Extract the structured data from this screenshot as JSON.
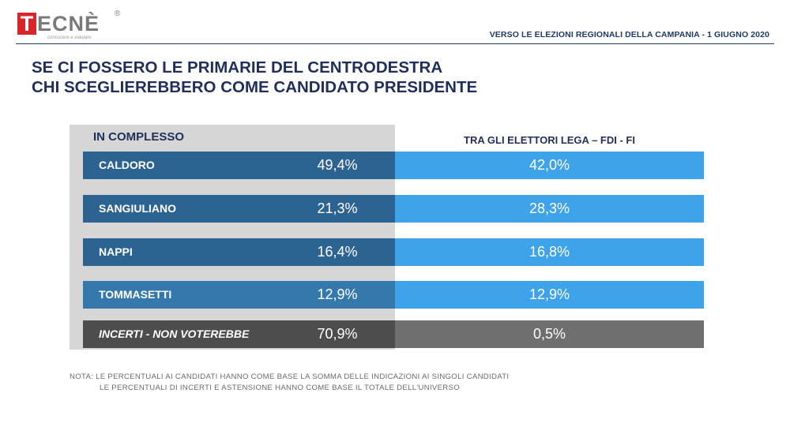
{
  "header": {
    "logo_letter": "T",
    "logo_rest": "ECNÈ",
    "logo_mark": "®",
    "logo_tagline": "conoscere e valutare",
    "subtitle": "VERSO LE ELEZIONI REGIONALI DELLA CAMPANIA - 1 GIUGNO 2020"
  },
  "title": {
    "line1": "SE CI FOSSERO LE PRIMARIE DEL CENTRODESTRA",
    "line2": "CHI SCEGLIEREBBERO COME CANDIDATO PRESIDENTE"
  },
  "colors": {
    "dark_blue": "#2d6390",
    "mid_blue": "#3578ab",
    "light_blue": "#3ea3e8",
    "dark_grey": "#4d4d4d",
    "mid_grey": "#6f6f6f",
    "panel_grey": "#d6d6d6",
    "title_navy": "#1f2f5a"
  },
  "chart_data": {
    "type": "table",
    "columns": [
      "IN COMPLESSO",
      "TRA GLI ELETTORI LEGA – FDI - FI"
    ],
    "rows": [
      {
        "label": "CALDORO",
        "values": [
          "49,4%",
          "42,0%"
        ]
      },
      {
        "label": "SANGIULIANO",
        "values": [
          "21,3%",
          "28,3%"
        ]
      },
      {
        "label": "NAPPI",
        "values": [
          "16,4%",
          "16,8%"
        ]
      },
      {
        "label": "TOMMASETTI",
        "values": [
          "12,9%",
          "12,9%"
        ]
      },
      {
        "label": "INCERTI  - NON VOTEREBBE",
        "values": [
          "70,9%",
          "0,5%"
        ]
      }
    ]
  },
  "note": {
    "line1": "NOTA: LE PERCENTUALI AI CANDIDATI HANNO COME BASE LA SOMMA DELLE INDICAZIONI AI SINGOLI CANDIDATI",
    "line2": "LE PERCENTUALI DI INCERTI E ASTENSIONE HANNO COME BASE IL TOTALE DELL'UNIVERSO"
  }
}
